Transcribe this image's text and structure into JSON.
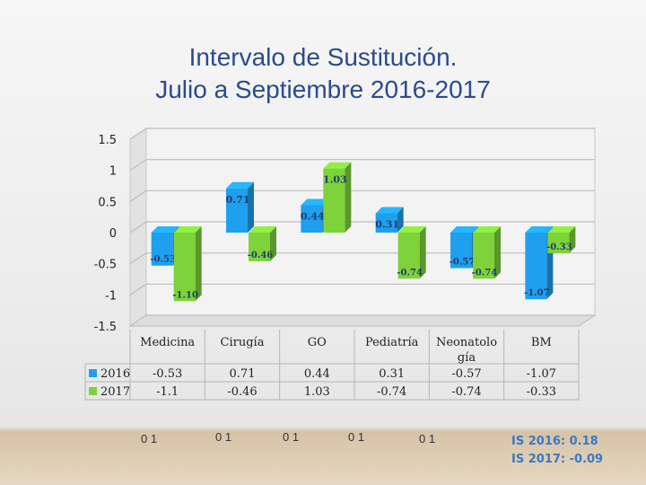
{
  "slide": {
    "title_line1": "Intervalo de Sustitución.",
    "title_line2": "Julio a Septiembre 2016-2017",
    "floor_labels": [
      "0 1",
      "0 1",
      "0 1",
      "0 1",
      "0 1"
    ],
    "notes": [
      "IS 2016: 0.18",
      "IS 2017: -0.09"
    ]
  },
  "chart_data": {
    "type": "bar",
    "categories": [
      "Medicina",
      "Cirugía",
      "GO",
      "Pediatría",
      "Neonatolo gía",
      "BM"
    ],
    "series": [
      {
        "name": "2016",
        "values": [
          -0.53,
          0.71,
          0.44,
          0.31,
          -0.57,
          -1.07
        ],
        "labels": [
          "-0.53",
          "0.71",
          "0.44",
          "0.31",
          "-0.57",
          "-1.07"
        ],
        "table": [
          "-0.53",
          "0.71",
          "0.44",
          "0.31",
          "-0.57",
          "-1.07"
        ],
        "color": "#1ea0ee"
      },
      {
        "name": "2017",
        "values": [
          -1.1,
          -0.46,
          1.03,
          -0.74,
          -0.74,
          -0.33
        ],
        "labels": [
          "-1.10",
          "-0.46",
          "1.03",
          "-0.74",
          "-0.74",
          "-0.33"
        ],
        "table": [
          "-1.1",
          "-0.46",
          "1.03",
          "-0.74",
          "-0.74",
          "-0.33"
        ],
        "color": "#7ed23a"
      }
    ],
    "yticks": [
      "1.5",
      "1",
      "0.5",
      "0",
      "-0.5",
      "-1",
      "-1.5"
    ],
    "ylim": [
      -1.5,
      1.5
    ],
    "grid": true,
    "legend": "data-table"
  }
}
